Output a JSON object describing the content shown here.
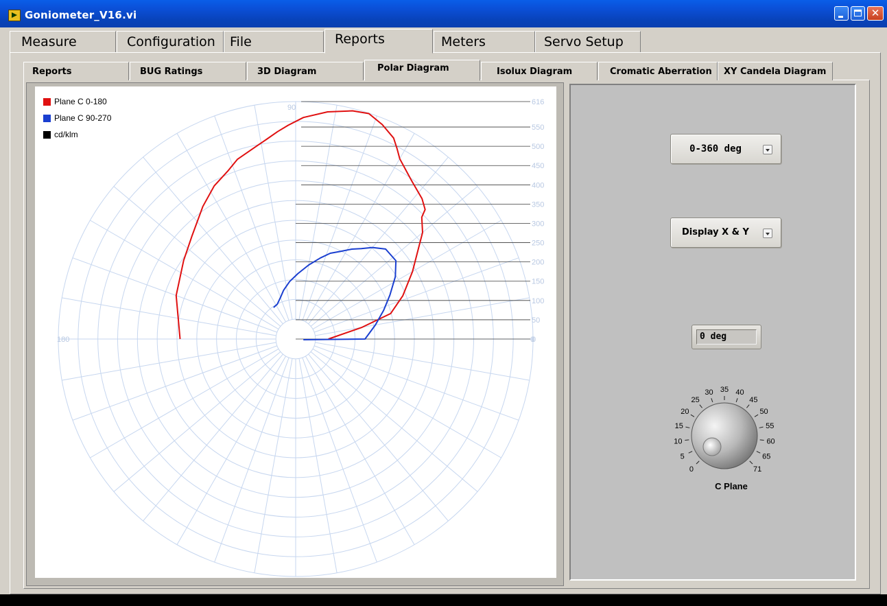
{
  "window": {
    "title": "Goniometer_V16.vi"
  },
  "main_tabs": [
    {
      "label": "Measure"
    },
    {
      "label": "Configuration"
    },
    {
      "label": "File"
    },
    {
      "label": "Reports"
    },
    {
      "label": "Meters"
    },
    {
      "label": "Servo Setup"
    }
  ],
  "main_active": "Reports",
  "sub_tabs": [
    {
      "label": "Reports"
    },
    {
      "label": "BUG Ratings"
    },
    {
      "label": "3D Diagram"
    },
    {
      "label": "Polar Diagram"
    },
    {
      "label": "Isolux Diagram"
    },
    {
      "label": "Cromatic Aberration"
    },
    {
      "label": "XY Candela Diagram"
    }
  ],
  "sub_active": "Polar Diagram",
  "legend": [
    {
      "label": "Plane C 0-180",
      "color": "#e01010"
    },
    {
      "label": "Plane C 90-270",
      "color": "#1a3fd0"
    },
    {
      "label": "cd/klm",
      "color": "#000000"
    }
  ],
  "polar": {
    "angle_labels": [
      "90",
      "180",
      "0"
    ],
    "radial_labels": [
      "616",
      "550",
      "500",
      "450",
      "400",
      "350",
      "300",
      "250",
      "200",
      "150",
      "100",
      "50",
      "0"
    ]
  },
  "controls": {
    "range_select": "0-360 deg",
    "display_select": "Display X & Y",
    "angle_indicator": "0 deg",
    "knob_label": "C Plane",
    "knob_scale": [
      "0",
      "5",
      "10",
      "15",
      "20",
      "25",
      "30",
      "35",
      "40",
      "45",
      "50",
      "55",
      "60",
      "65",
      "71"
    ]
  },
  "chart_data": {
    "type": "polar",
    "radial_range": [
      0,
      616
    ],
    "series": [
      {
        "name": "Plane C 0-180",
        "color": "#e01010",
        "points": [
          [
            360,
            85
          ],
          [
            370,
            175
          ],
          [
            375,
            255
          ],
          [
            382,
            300
          ],
          [
            390,
            350
          ],
          [
            398,
            410
          ],
          [
            400,
            430
          ],
          [
            404,
            455
          ],
          [
            405,
            475
          ],
          [
            408,
            490
          ],
          [
            414,
            510
          ],
          [
            420,
            540
          ],
          [
            422,
            560
          ],
          [
            424,
            580
          ],
          [
            428,
            600
          ],
          [
            432,
            615
          ],
          [
            436,
            610
          ],
          [
            442,
            595
          ],
          [
            448,
            575
          ],
          [
            452,
            555
          ],
          [
            455,
            540
          ],
          [
            458,
            525
          ],
          [
            463,
            505
          ],
          [
            468,
            490
          ],
          [
            472,
            470
          ],
          [
            478,
            450
          ],
          [
            485,
            420
          ],
          [
            495,
            380
          ],
          [
            505,
            355
          ],
          [
            520,
            330
          ],
          [
            540,
            300
          ]
        ]
      },
      {
        "name": "Plane C 90-270",
        "color": "#1a3fd0",
        "points": [
          [
            355,
            20
          ],
          [
            360,
            180
          ],
          [
            370,
            210
          ],
          [
            378,
            240
          ],
          [
            385,
            270
          ],
          [
            392,
            305
          ],
          [
            398,
            330
          ],
          [
            405,
            330
          ],
          [
            410,
            310
          ],
          [
            414,
            290
          ],
          [
            418,
            275
          ],
          [
            423,
            255
          ],
          [
            428,
            240
          ],
          [
            433,
            220
          ],
          [
            440,
            195
          ],
          [
            448,
            170
          ],
          [
            456,
            150
          ],
          [
            464,
            130
          ],
          [
            470,
            115
          ],
          [
            478,
            102
          ],
          [
            485,
            100
          ]
        ]
      }
    ]
  }
}
